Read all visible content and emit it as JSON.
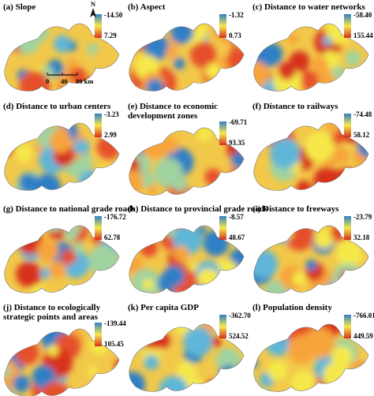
{
  "panels": [
    {
      "title": [
        "(a) Slope"
      ],
      "legend": [
        "-14.50",
        "7.29"
      ]
    },
    {
      "title": [
        "(b) Aspect"
      ],
      "legend": [
        "-1.32",
        "0.73"
      ]
    },
    {
      "title": [
        "(c) Distance to water networks"
      ],
      "legend": [
        "-58.40",
        "155.44"
      ]
    },
    {
      "title": [
        "(d) Distance to urban centers"
      ],
      "legend": [
        "-3.23",
        "2.99"
      ]
    },
    {
      "title": [
        "(e)  Distance to economic",
        "development zones"
      ],
      "legend": [
        "-69.71",
        "93.35"
      ]
    },
    {
      "title": [
        "(f) Distance to railways"
      ],
      "legend": [
        "-74.48",
        "58.12"
      ]
    },
    {
      "title": [
        "(g) Distance to national grade roads"
      ],
      "legend": [
        "-176.72",
        "62.78"
      ]
    },
    {
      "title": [
        "(h) Distance to provincial grade roads"
      ],
      "legend": [
        "-8.57",
        "48.67"
      ]
    },
    {
      "title": [
        "(i) Distance to freeways"
      ],
      "legend": [
        "-23.79",
        "32.18"
      ]
    },
    {
      "title": [
        "(j) Distance to ecologically",
        "strategic points and areas"
      ],
      "legend": [
        "-139.44",
        "105.45"
      ]
    },
    {
      "title": [
        "(k) Per capita GDP"
      ],
      "legend": [
        "-362.70",
        "524.52"
      ]
    },
    {
      "title": [
        "(l) Population density"
      ],
      "legend": [
        "-766.01",
        "449.59"
      ]
    }
  ],
  "north": "N",
  "scale_bar": [
    "0",
    "40",
    "80 km"
  ]
}
